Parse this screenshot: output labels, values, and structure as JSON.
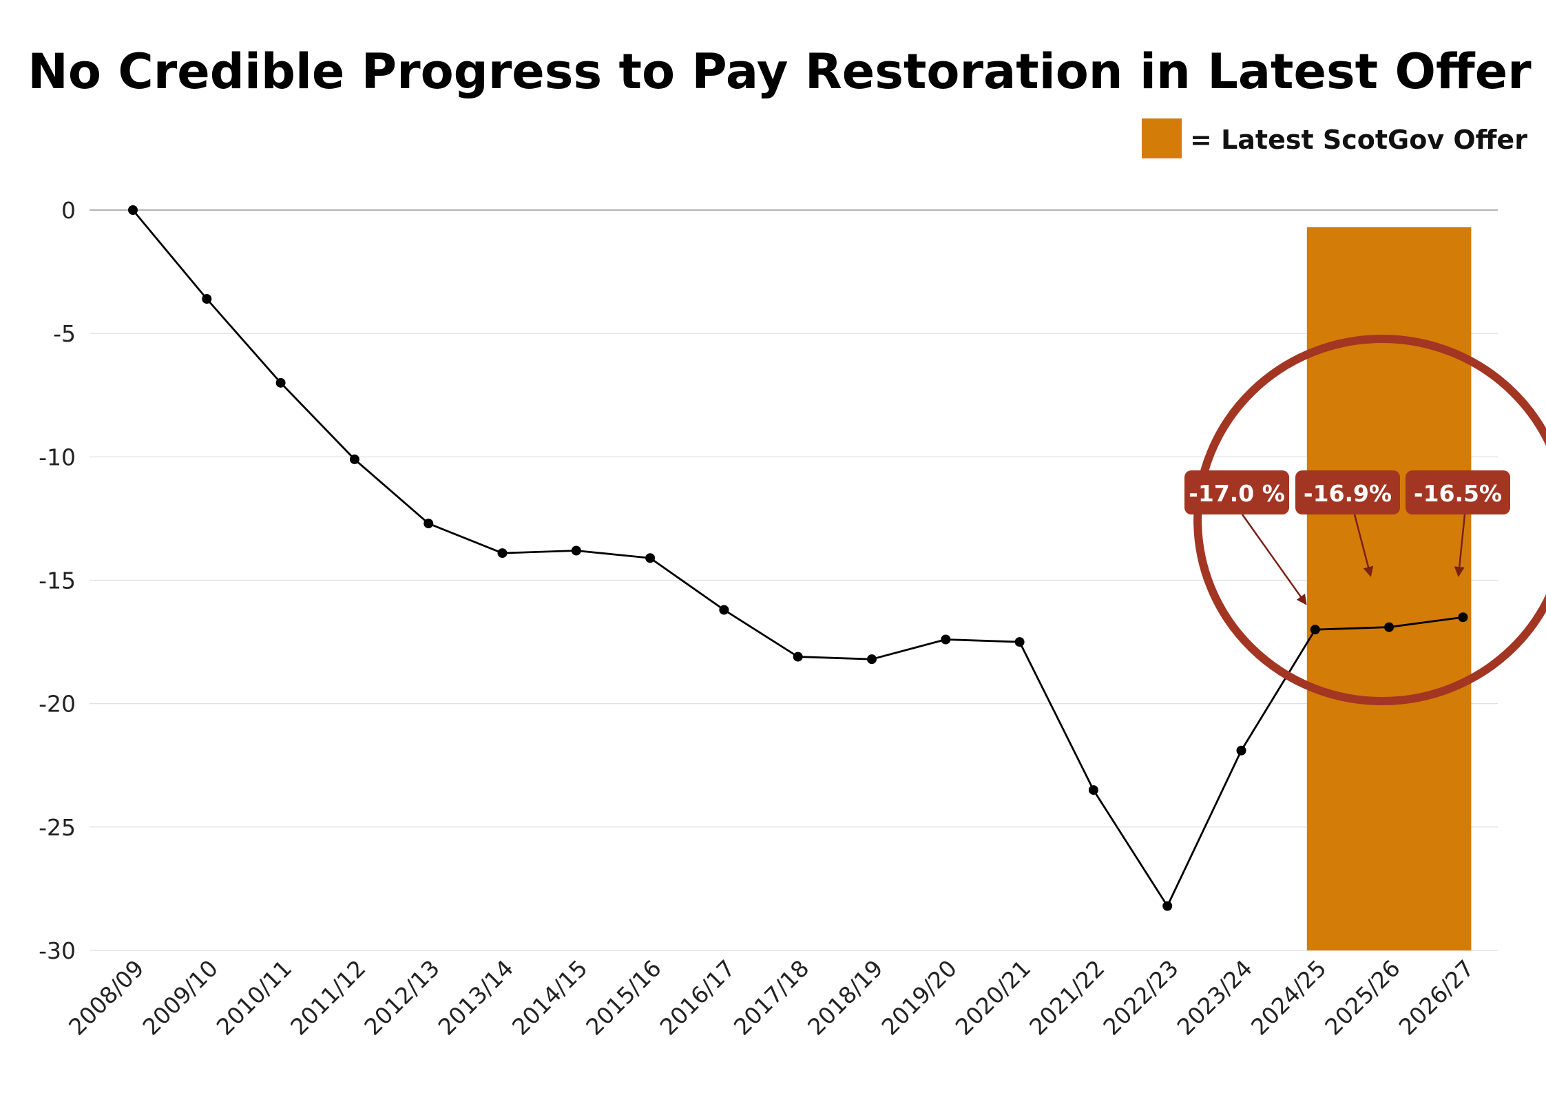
{
  "chart_data": {
    "type": "line",
    "title": "No Credible Progress to Pay Restoration in Latest Offer",
    "xlabel": "",
    "ylabel": "",
    "ylim": [
      -30,
      0
    ],
    "yticks": [
      "0",
      "-5",
      "-10",
      "-15",
      "-20",
      "-25",
      "-30"
    ],
    "grid": true,
    "legend": {
      "label": "= Latest ScotGov Offer",
      "color": "#D47C08",
      "placement": "top-right"
    },
    "categories": [
      "2008/09",
      "2009/10",
      "2010/11",
      "2011/12",
      "2012/13",
      "2013/14",
      "2014/15",
      "2015/16",
      "2016/17",
      "2017/18",
      "2018/19",
      "2019/20",
      "2020/21",
      "2021/22",
      "2022/23",
      "2023/24",
      "2024/25",
      "2025/26",
      "2026/27"
    ],
    "series": [
      {
        "color": "#000000",
        "values": [
          0,
          -3.6,
          -7.0,
          -10.1,
          -12.7,
          -13.9,
          -13.8,
          -14.1,
          -16.2,
          -18.1,
          -18.2,
          -17.4,
          -17.5,
          -23.5,
          -28.2,
          -21.9,
          -17.0,
          -16.9,
          -16.5
        ]
      }
    ],
    "highlight": {
      "from": "2024/25",
      "to": "2026/27",
      "color": "#D47C08"
    },
    "annotations": [
      {
        "text": "-17.0 %",
        "category": "2024/25",
        "value": -17.0
      },
      {
        "text": "-16.9%",
        "category": "2025/26",
        "value": -16.9
      },
      {
        "text": "-16.5%",
        "category": "2026/27",
        "value": -16.5
      }
    ],
    "annotation_colors": {
      "box": "#A33523",
      "circle": "#A33523",
      "arrow": "#7A2014"
    }
  }
}
